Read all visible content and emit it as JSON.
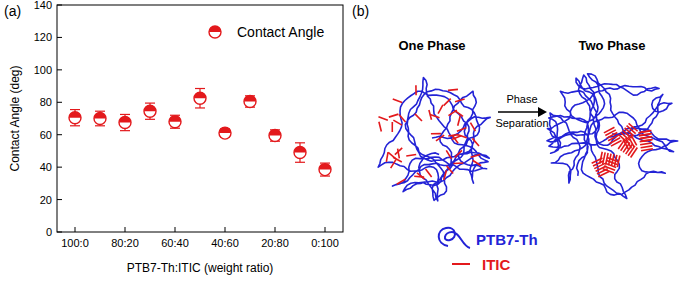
{
  "chart_data": {
    "type": "scatter",
    "x_label": "PTB7-Th:ITIC (weight ratio)",
    "y_label": "Contact Angle (deg)",
    "categories": [
      "100:0",
      null,
      "80:20",
      null,
      "60:40",
      null,
      "40:60",
      null,
      "20:80",
      null,
      "0:100"
    ],
    "series": [
      {
        "name": "Contact Angle",
        "color": "#e3191c",
        "marker": "half-circle",
        "values": [
          70.5,
          70,
          67.5,
          74.5,
          68,
          82.5,
          61,
          80.5,
          59.5,
          49,
          38.5
        ],
        "errors": [
          5,
          4.5,
          5,
          5,
          4,
          6,
          2.5,
          3.5,
          3.5,
          6,
          4
        ]
      }
    ],
    "ylim": [
      0,
      140
    ],
    "yticks": [
      0,
      20,
      40,
      60,
      80,
      100,
      120,
      140
    ],
    "legend": "top-right"
  },
  "panel_labels": [
    "(a)",
    "(b)"
  ],
  "diagram": {
    "states": [
      {
        "label": "One Phase"
      },
      {
        "label": "Two Phase"
      }
    ],
    "arrow_label": [
      "Phase",
      "Separation"
    ],
    "legend": [
      {
        "label": "PTB7-Th",
        "color": "#2323d6"
      },
      {
        "label": "ITIC",
        "color": "#e3191c"
      }
    ]
  }
}
